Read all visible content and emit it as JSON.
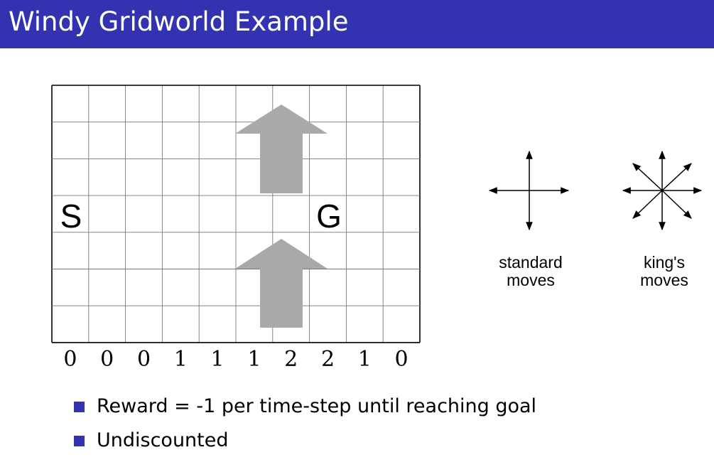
{
  "title": "Windy Gridworld Example",
  "colors": {
    "title_bar": "#3333b2",
    "wind_arrow": "#a9a9a9",
    "bullet_marker": "#3333b2"
  },
  "grid": {
    "columns": 10,
    "rows": 7,
    "wind_strengths": [
      "0",
      "0",
      "0",
      "1",
      "1",
      "1",
      "2",
      "2",
      "1",
      "0"
    ],
    "start_label": "S",
    "goal_label": "G",
    "start_cell": {
      "col": 0,
      "row": 3
    },
    "goal_cell": {
      "col": 7,
      "row": 3
    }
  },
  "moves": {
    "standard_caption": [
      "standard",
      "moves"
    ],
    "kings_caption": [
      "king's",
      "moves"
    ]
  },
  "bullets": [
    "Reward = -1 per time-step until reaching goal",
    "Undiscounted"
  ],
  "icons": [
    "wind-up-arrow-icon",
    "standard-moves-icon",
    "kings-moves-icon",
    "bullet-square-icon"
  ]
}
